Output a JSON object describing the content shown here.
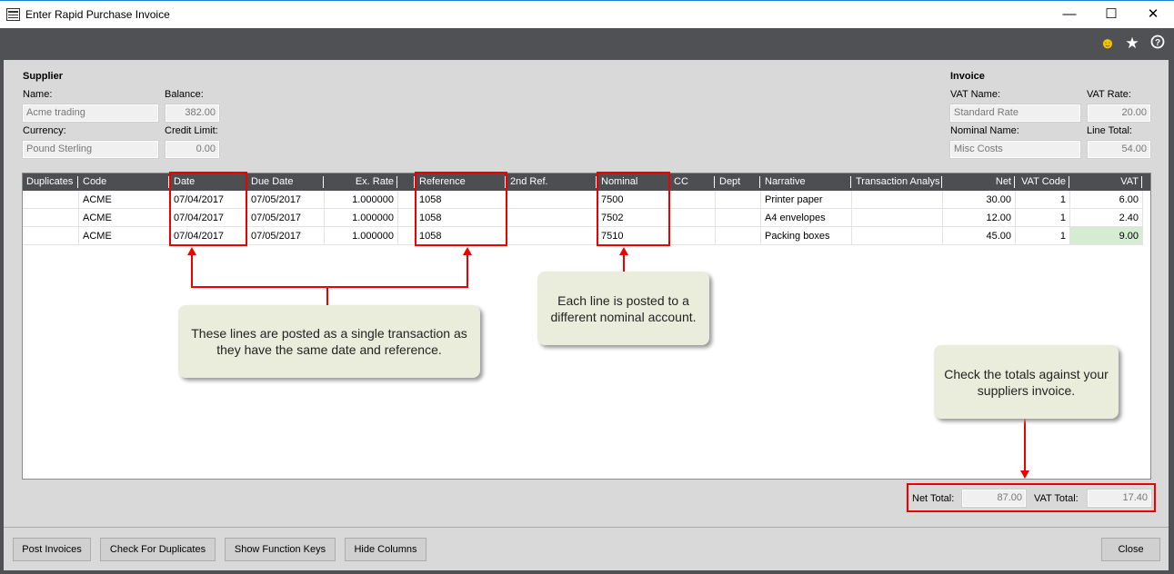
{
  "window": {
    "title": "Enter Rapid Purchase Invoice",
    "icons": [
      "form-icon",
      "minimize-icon",
      "maximize-icon",
      "close-icon"
    ]
  },
  "toolbar": {
    "icons": [
      "smiley-feedback-icon",
      "star-favourite-icon",
      "help-icon"
    ],
    "accent": "#f5c400"
  },
  "supplier": {
    "heading": "Supplier",
    "name_label": "Name:",
    "name": "Acme trading",
    "balance_label": "Balance:",
    "balance": "382.00",
    "currency_label": "Currency:",
    "currency": "Pound Sterling",
    "credit_label": "Credit Limit:",
    "credit": "0.00"
  },
  "invoice": {
    "heading": "Invoice",
    "vat_name_label": "VAT Name:",
    "vat_name": "Standard Rate",
    "vat_rate_label": "VAT Rate:",
    "vat_rate": "20.00",
    "nominal_name_label": "Nominal Name:",
    "nominal_name": "Misc Costs",
    "line_total_label": "Line Total:",
    "line_total": "54.00"
  },
  "grid": {
    "columns": [
      "Duplicates",
      "Code",
      "Date",
      "Due Date",
      "Ex. Rate",
      "",
      "Reference",
      "2nd Ref.",
      "Nominal",
      "CC",
      "Dept",
      "Narrative",
      "Transaction Analys",
      "Net",
      "VAT Code",
      "VAT"
    ],
    "rows": [
      [
        "",
        "ACME",
        "07/04/2017",
        "07/05/2017",
        "1.000000",
        "",
        "1058",
        "",
        "7500",
        "",
        "",
        "Printer paper",
        "",
        "30.00",
        "1",
        "6.00"
      ],
      [
        "",
        "ACME",
        "07/04/2017",
        "07/05/2017",
        "1.000000",
        "",
        "1058",
        "",
        "7502",
        "",
        "",
        "A4 envelopes",
        "",
        "12.00",
        "1",
        "2.40"
      ],
      [
        "",
        "ACME",
        "07/04/2017",
        "07/05/2017",
        "1.000000",
        "",
        "1058",
        "",
        "7510",
        "",
        "",
        "Packing boxes",
        "",
        "45.00",
        "1",
        "9.00"
      ]
    ],
    "selected_cell_color": "#d5ebd2"
  },
  "callouts": {
    "same_transaction": "These lines are posted as a single transaction as they have the same date and reference.",
    "nominal": "Each line is posted to a different nominal account.",
    "totals": "Check the totals against your suppliers invoice."
  },
  "totals": {
    "net_label": "Net Total:",
    "net": "87.00",
    "vat_label": "VAT Total:",
    "vat": "17.40"
  },
  "buttons": {
    "post": "Post Invoices",
    "check": "Check For Duplicates",
    "keys": "Show Function Keys",
    "hide": "Hide Columns",
    "close": "Close"
  },
  "annotation_color": "#e00000"
}
